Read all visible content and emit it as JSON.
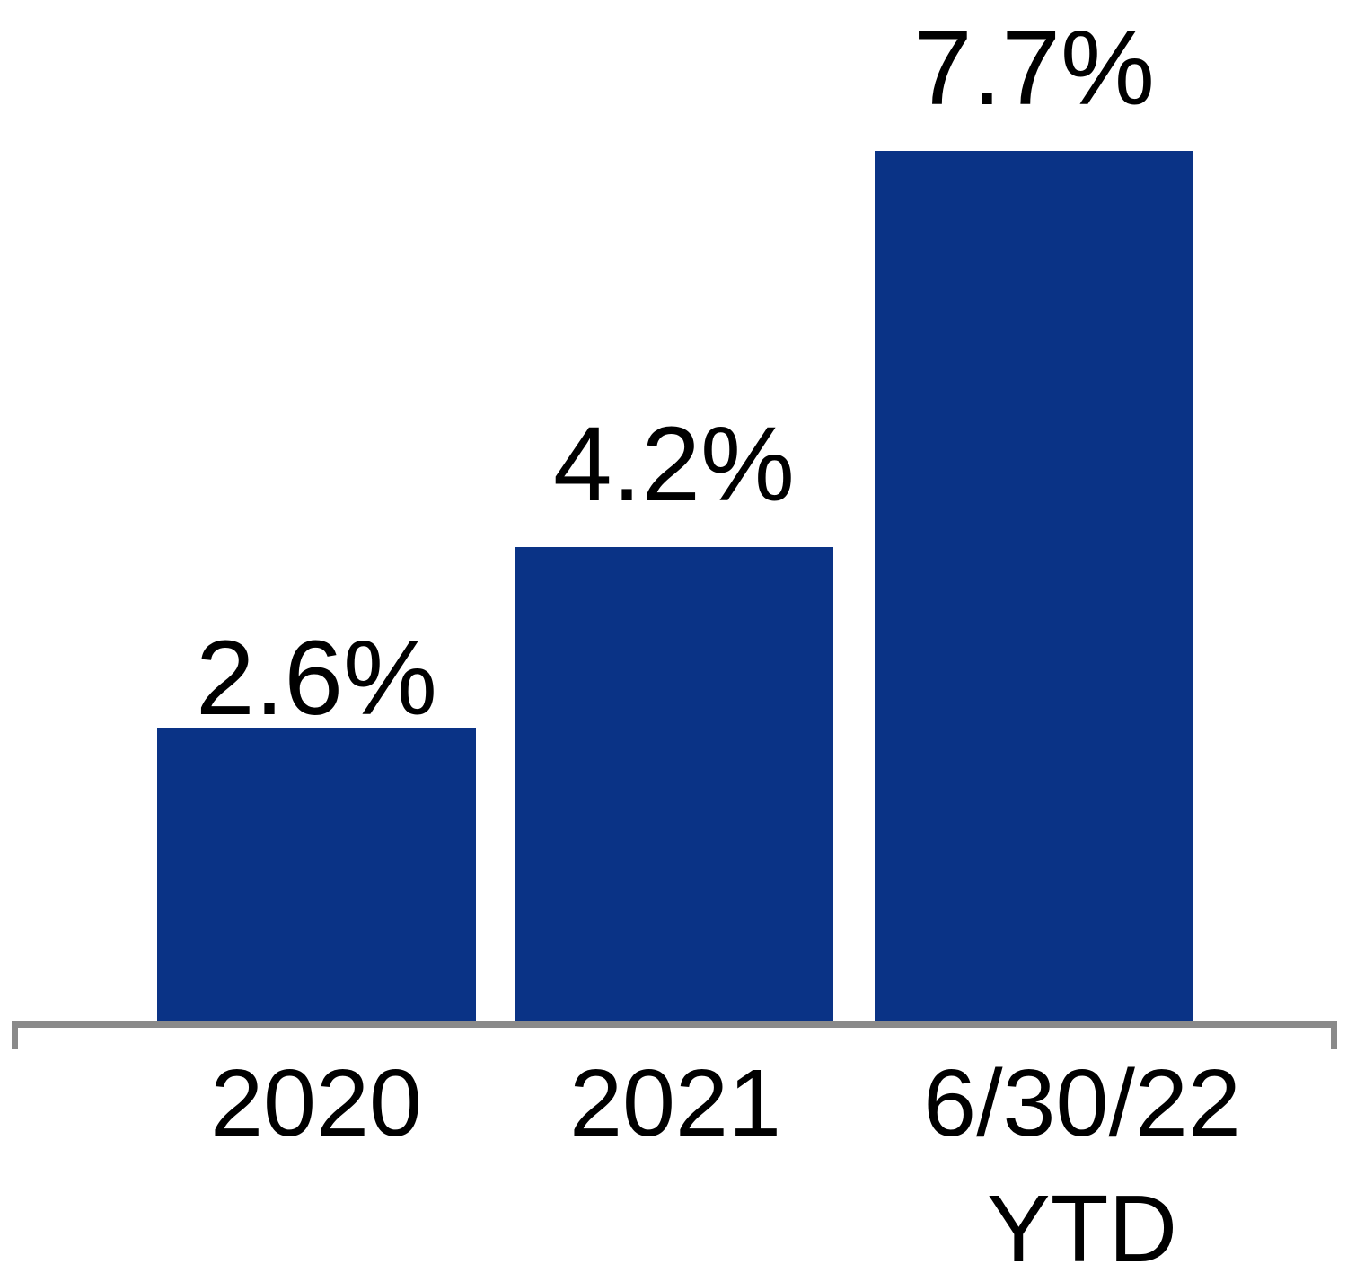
{
  "chart_data": {
    "type": "bar",
    "title": "",
    "categories": [
      "2020",
      "2021",
      "6/30/22 YTD"
    ],
    "x_tick_labels": [
      "2020",
      "2021",
      "6/30/22\nYTD"
    ],
    "values": [
      2.6,
      4.2,
      7.7
    ],
    "value_labels": [
      "2.6%",
      "4.2%",
      "7.7%"
    ],
    "unit": "%",
    "ylim": [
      0,
      8.5
    ],
    "y_axis_shown": false,
    "gridlines": false,
    "legend": false,
    "bar_color": "#0a3386",
    "axis_color": "#8a8a8a",
    "label_color": "#000000",
    "background_color": "#ffffff"
  }
}
